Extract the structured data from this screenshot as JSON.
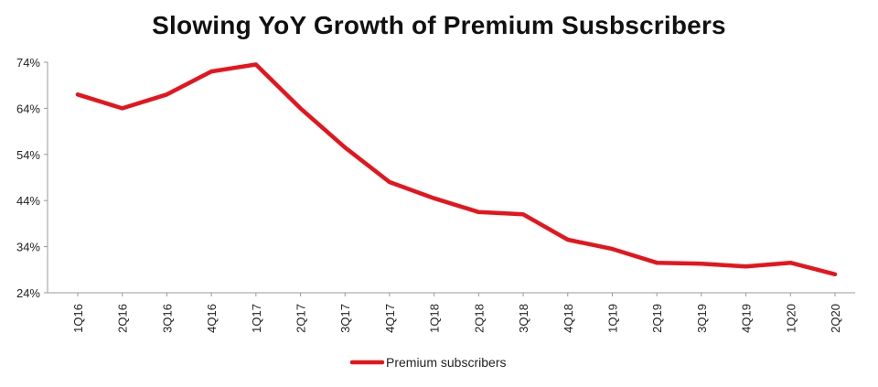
{
  "chart_data": {
    "type": "line",
    "title": "Slowing YoY Growth of Premium Susbscribers",
    "xlabel": "",
    "ylabel": "",
    "categories": [
      "1Q16",
      "2Q16",
      "3Q16",
      "4Q16",
      "1Q17",
      "2Q17",
      "3Q17",
      "4Q17",
      "1Q18",
      "2Q18",
      "3Q18",
      "4Q18",
      "1Q19",
      "2Q19",
      "3Q19",
      "4Q19",
      "1Q20",
      "2Q20"
    ],
    "y_ticks": [
      "24%",
      "34%",
      "44%",
      "54%",
      "64%",
      "74%"
    ],
    "y_tick_values": [
      24,
      34,
      44,
      54,
      64,
      74
    ],
    "ylim": [
      24,
      74
    ],
    "grid": false,
    "legend_position": "bottom-center",
    "series": [
      {
        "name": "Premium subscribers",
        "color": "#e8131b",
        "values": [
          67,
          64,
          67,
          72,
          73.5,
          64,
          55.5,
          48,
          44.5,
          41.5,
          41,
          35.5,
          33.5,
          30.5,
          30.3,
          29.7,
          30.5,
          28
        ]
      }
    ]
  }
}
